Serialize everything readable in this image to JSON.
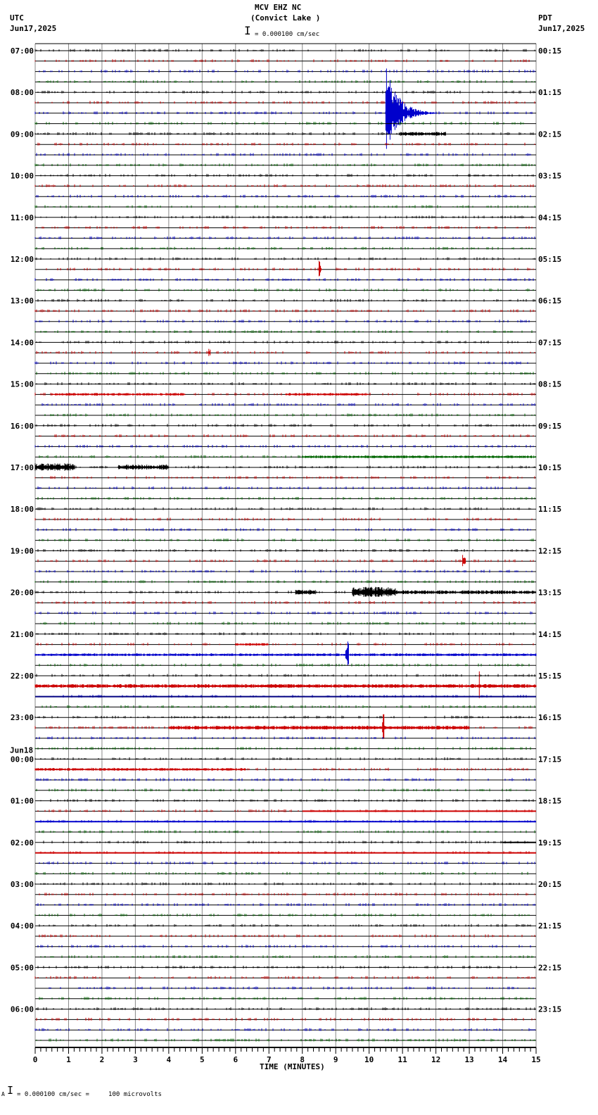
{
  "header": {
    "station": "MCV EHZ NC",
    "location": "(Convict Lake )",
    "left_tz": "UTC",
    "left_date": "Jun17,2025",
    "right_tz": "PDT",
    "right_date": "Jun17,2025",
    "scale_text": "= 0.000100 cm/sec"
  },
  "footer": {
    "scale_text": "= 0.000100 cm/sec =     100 microvolts",
    "prefix": "A"
  },
  "chart_data": {
    "type": "line",
    "title": "MCV EHZ NC (Convict Lake )",
    "xlabel": "TIME (MINUTES)",
    "ylabel": "",
    "xlim": [
      0,
      15
    ],
    "x_ticks": [
      0,
      1,
      2,
      3,
      4,
      5,
      6,
      7,
      8,
      9,
      10,
      11,
      12,
      13,
      14,
      15
    ],
    "grid": true,
    "traces_per_hour": 4,
    "trace_minutes": 15,
    "trace_colors": [
      "#000000",
      "#cc0000",
      "#0000cc",
      "#006600"
    ],
    "left_labels": [
      {
        "row": 0,
        "text": "07:00"
      },
      {
        "row": 4,
        "text": "08:00"
      },
      {
        "row": 8,
        "text": "09:00"
      },
      {
        "row": 12,
        "text": "10:00"
      },
      {
        "row": 16,
        "text": "11:00"
      },
      {
        "row": 20,
        "text": "12:00"
      },
      {
        "row": 24,
        "text": "13:00"
      },
      {
        "row": 28,
        "text": "14:00"
      },
      {
        "row": 32,
        "text": "15:00"
      },
      {
        "row": 36,
        "text": "16:00"
      },
      {
        "row": 40,
        "text": "17:00"
      },
      {
        "row": 44,
        "text": "18:00"
      },
      {
        "row": 48,
        "text": "19:00"
      },
      {
        "row": 52,
        "text": "20:00"
      },
      {
        "row": 56,
        "text": "21:00"
      },
      {
        "row": 60,
        "text": "22:00"
      },
      {
        "row": 64,
        "text": "23:00"
      },
      {
        "row": 68,
        "text": "00:00",
        "date": "Jun18"
      },
      {
        "row": 72,
        "text": "01:00"
      },
      {
        "row": 76,
        "text": "02:00"
      },
      {
        "row": 80,
        "text": "03:00"
      },
      {
        "row": 84,
        "text": "04:00"
      },
      {
        "row": 88,
        "text": "05:00"
      },
      {
        "row": 92,
        "text": "06:00"
      }
    ],
    "right_labels": [
      {
        "row": 0,
        "text": "00:15"
      },
      {
        "row": 4,
        "text": "01:15"
      },
      {
        "row": 8,
        "text": "02:15"
      },
      {
        "row": 12,
        "text": "03:15"
      },
      {
        "row": 16,
        "text": "04:15"
      },
      {
        "row": 20,
        "text": "05:15"
      },
      {
        "row": 24,
        "text": "06:15"
      },
      {
        "row": 28,
        "text": "07:15"
      },
      {
        "row": 32,
        "text": "08:15"
      },
      {
        "row": 36,
        "text": "09:15"
      },
      {
        "row": 40,
        "text": "10:15"
      },
      {
        "row": 44,
        "text": "11:15"
      },
      {
        "row": 48,
        "text": "12:15"
      },
      {
        "row": 52,
        "text": "13:15"
      },
      {
        "row": 56,
        "text": "14:15"
      },
      {
        "row": 60,
        "text": "15:15"
      },
      {
        "row": 64,
        "text": "16:15"
      },
      {
        "row": 68,
        "text": "17:15"
      },
      {
        "row": 72,
        "text": "18:15"
      },
      {
        "row": 76,
        "text": "19:15"
      },
      {
        "row": 80,
        "text": "20:15"
      },
      {
        "row": 84,
        "text": "21:15"
      },
      {
        "row": 88,
        "text": "22:15"
      },
      {
        "row": 92,
        "text": "23:15"
      }
    ],
    "events": [
      {
        "row": 6,
        "start_min": 10.5,
        "end_min": 12.0,
        "amp": 70,
        "label": "earthquake"
      },
      {
        "row": 8,
        "start_min": 10.9,
        "end_min": 12.3,
        "amp": 3
      },
      {
        "row": 21,
        "start_min": 8.5,
        "end_min": 8.6,
        "amp": 30
      },
      {
        "row": 29,
        "start_min": 5.2,
        "end_min": 5.25,
        "amp": 6
      },
      {
        "row": 33,
        "start_min": 0.5,
        "end_min": 4.5,
        "amp": 2
      },
      {
        "row": 33,
        "start_min": 7.5,
        "end_min": 10,
        "amp": 2
      },
      {
        "row": 39,
        "start_min": 8,
        "end_min": 15,
        "amp": 2
      },
      {
        "row": 40,
        "start_min": 0,
        "end_min": 1.2,
        "amp": 6
      },
      {
        "row": 40,
        "start_min": 2.5,
        "end_min": 4,
        "amp": 4
      },
      {
        "row": 49,
        "start_min": 12.8,
        "end_min": 12.9,
        "amp": 10
      },
      {
        "row": 52,
        "start_min": 7.8,
        "end_min": 8.4,
        "amp": 4
      },
      {
        "row": 52,
        "start_min": 9.5,
        "end_min": 10.8,
        "amp": 8
      },
      {
        "row": 52,
        "start_min": 10.8,
        "end_min": 15,
        "amp": 3
      },
      {
        "row": 57,
        "start_min": 6,
        "end_min": 7,
        "amp": 2
      },
      {
        "row": 58,
        "start_min": 0,
        "end_min": 15,
        "amp": 2
      },
      {
        "row": 58,
        "start_min": 9.3,
        "end_min": 9.4,
        "amp": 20
      },
      {
        "row": 61,
        "start_min": 0,
        "end_min": 15,
        "amp": 3
      },
      {
        "row": 61,
        "start_min": 13.3,
        "end_min": 13.35,
        "amp": 22
      },
      {
        "row": 65,
        "start_min": 4,
        "end_min": 13,
        "amp": 3
      },
      {
        "row": 65,
        "start_min": 10.4,
        "end_min": 10.45,
        "amp": 20
      },
      {
        "row": 69,
        "start_min": 0,
        "end_min": 6.3,
        "amp": 2
      }
    ],
    "solid_traces": [
      {
        "row": 62,
        "color": "#000080"
      },
      {
        "row": 73,
        "color": "#cc0000",
        "from_min": 8
      },
      {
        "row": 74,
        "color": "#0000cc"
      },
      {
        "row": 77,
        "color": "#cc0000"
      },
      {
        "row": 76,
        "color": "#000000",
        "from_min": 14
      }
    ]
  }
}
